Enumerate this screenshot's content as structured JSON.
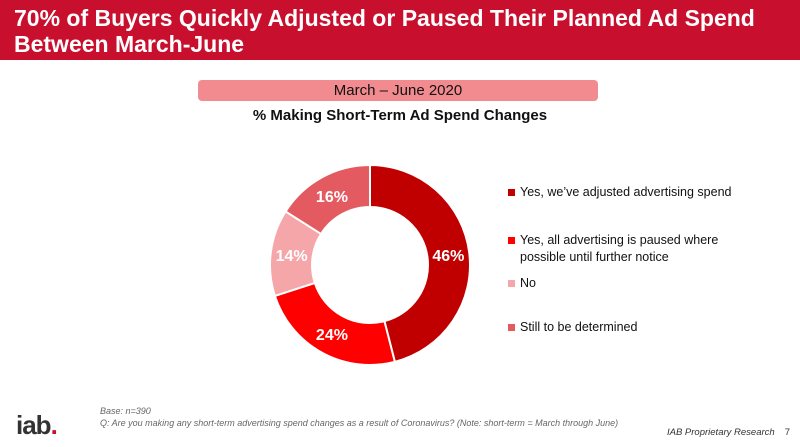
{
  "header": {
    "title": "70% of Buyers Quickly Adjusted or Paused Their Planned Ad Spend Between March-June"
  },
  "period_label": "March – June 2020",
  "chart_data": {
    "type": "pie",
    "variant": "donut",
    "title": "% Making Short-Term Ad Spend Changes",
    "categories": [
      "Yes, we’ve adjusted advertising spend",
      "Yes, all advertising is paused where possible until further notice",
      "No",
      "Still to be determined"
    ],
    "values": [
      46,
      24,
      14,
      16
    ],
    "value_labels": [
      "46%",
      "24%",
      "14%",
      "16%"
    ],
    "colors": [
      "#c00000",
      "#ff0000",
      "#f4a6a9",
      "#e45a61"
    ],
    "legend_position": "right"
  },
  "footnote": {
    "base": "Base: n=390",
    "question": "Q: Are you making any short-term advertising spend changes as a result of Coronavirus? (Note: short-term = March through June)"
  },
  "footer": {
    "logo_text": "iab",
    "logo_dot": ".",
    "source": "IAB Proprietary Research",
    "page_number": "7"
  }
}
